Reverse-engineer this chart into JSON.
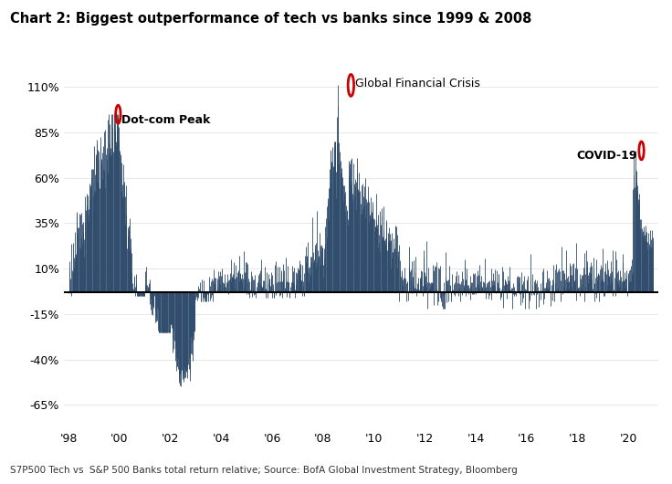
{
  "title": "Chart 2: Biggest outperformance of tech vs banks since 1999 & 2008",
  "footnote": "S7P500 Tech vs  S&P 500 Banks total return relative; Source: BofA Global Investment Strategy, Bloomberg",
  "bar_color": "#2d4a6b",
  "background_color": "#ffffff",
  "zero_line_y": -3.0,
  "ylim": [
    -78,
    130
  ],
  "yticks": [
    -65,
    -40,
    -15,
    10,
    35,
    60,
    85,
    110
  ],
  "ytick_labels": [
    "-65%",
    "-40%",
    "-15%",
    "10%",
    "35%",
    "60%",
    "85%",
    "110%"
  ],
  "xtick_labels": [
    "'98",
    "'00",
    "'02",
    "'04",
    "'06",
    "'08",
    "'10",
    "'12",
    "'14",
    "'16",
    "'18",
    "'20"
  ],
  "title_color": "#000000",
  "title_fontsize": 10.5,
  "footnote_fontsize": 7.5,
  "annotation_circle_color": "#cc0000",
  "annotation_text_fontsize": 9,
  "title_line_color": "#2d4a6b"
}
